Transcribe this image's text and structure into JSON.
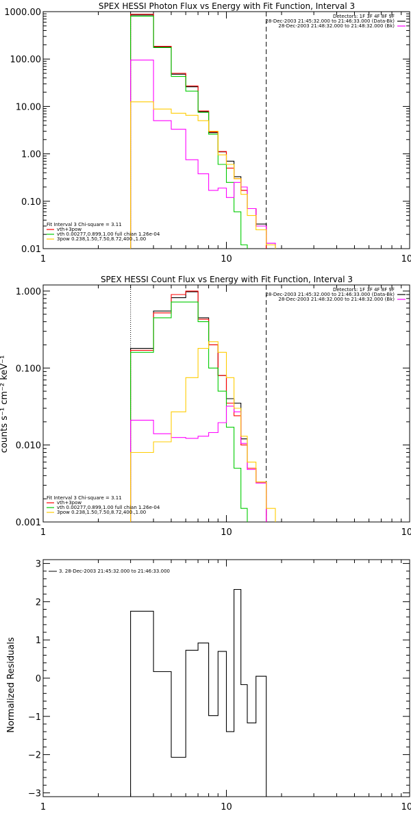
{
  "chart_data": [
    {
      "type": "line",
      "title": "SPEX HESSI Photon Flux vs Energy with Fit Function, Interval 3",
      "xscale": "log",
      "yscale": "log",
      "xlim": [
        1,
        100
      ],
      "ylim": [
        0.01,
        1000
      ],
      "xticks": [
        {
          "v": 1,
          "label": "1"
        },
        {
          "v": 10,
          "label": "10"
        },
        {
          "v": 100,
          "label": "100"
        }
      ],
      "yticks": [
        {
          "v": 0.01,
          "label": "0.01"
        },
        {
          "v": 0.1,
          "label": "0.10"
        },
        {
          "v": 1,
          "label": "1.00"
        },
        {
          "v": 10,
          "label": "10.00"
        },
        {
          "v": 100,
          "label": "100.00"
        },
        {
          "v": 1000,
          "label": "1000.00"
        }
      ],
      "vlines": [
        {
          "x": 3,
          "style": "dotted"
        },
        {
          "x": 16.5,
          "style": "dashed"
        }
      ],
      "legend_top": [
        "Detectors: 1F 3F 4F 8F 9F",
        "28-Dec-2003 21:45:32.000 to 21:46:33.000 (Data-Bk)",
        "28-Dec-2003 21:48:32.000 to 21:48:32.000 (Bk)"
      ],
      "legend_top_colors": [
        "#000000",
        "#000000",
        "#ff00ff"
      ],
      "legend_bottom": [
        "Fit Interval 3   Chi-square = 3.11",
        "vth+3pow",
        "vth 0.00277,0.899,1.00  full chian 1.26e-04",
        "3pow 0.238,1.50,7.50,8.72,400.,1.00"
      ],
      "legend_bottom_colors": [
        "",
        "#ff0000",
        "#00cc00",
        "#ffcc00"
      ],
      "edges": [
        3,
        4,
        5,
        6,
        7,
        8,
        9,
        10,
        11,
        12,
        13,
        14.5,
        16.5,
        18.5
      ],
      "series": [
        {
          "color": "#000000",
          "values": [
            850,
            180,
            48,
            26,
            7.8,
            2.8,
            1.1,
            0.7,
            0.33,
            0.17,
            0.07,
            0.033,
            0.013
          ]
        },
        {
          "color": "#ff0000",
          "values": [
            880,
            185,
            50,
            27,
            8.0,
            2.9,
            1.12,
            0.5,
            0.3,
            0.17,
            0.07,
            0.03,
            null
          ]
        },
        {
          "color": "#00cc00",
          "values": [
            800,
            175,
            43,
            21,
            7.5,
            2.6,
            0.6,
            0.25,
            0.06,
            0.012,
            null,
            null,
            null
          ]
        },
        {
          "color": "#ff00ff",
          "values": [
            95,
            5.0,
            3.3,
            0.75,
            0.38,
            0.17,
            0.19,
            0.12,
            0.25,
            0.2,
            0.07,
            0.03,
            0.013
          ]
        },
        {
          "color": "#ffcc00",
          "values": [
            12.5,
            8.8,
            7.2,
            6.5,
            5.0,
            3.0,
            0.95,
            0.6,
            0.3,
            0.14,
            0.05,
            0.025,
            0.012
          ]
        }
      ]
    },
    {
      "type": "line",
      "title": "SPEX HESSI Count Flux vs Energy with Fit Function, Interval 3",
      "ylabel": "counts s⁻¹ cm⁻² keV⁻¹",
      "xscale": "log",
      "yscale": "log",
      "xlim": [
        1,
        100
      ],
      "ylim": [
        0.001,
        1.2
      ],
      "xticks": [
        {
          "v": 1,
          "label": "1"
        },
        {
          "v": 10,
          "label": "10"
        },
        {
          "v": 100,
          "label": "100"
        }
      ],
      "yticks": [
        {
          "v": 0.001,
          "label": "0.001"
        },
        {
          "v": 0.01,
          "label": "0.010"
        },
        {
          "v": 0.1,
          "label": "0.100"
        },
        {
          "v": 1,
          "label": "1.000"
        }
      ],
      "vlines": [
        {
          "x": 3,
          "style": "dotted"
        },
        {
          "x": 16.5,
          "style": "dashed"
        }
      ],
      "legend_top": [
        "Detectors: 1F 3F 4F 8F 9F",
        "28-Dec-2003 21:45:32.000 to 21:46:33.000 (Data-Bk)",
        "28-Dec-2003 21:48:32.000 to 21:48:32.000 (Bk)"
      ],
      "legend_top_colors": [
        "#000000",
        "#000000",
        "#ff00ff"
      ],
      "legend_bottom": [
        "Fit Interval 3   Chi-square = 3.11",
        "vth+3pow",
        "vth 0.00277,0.899,1.00  full chian 1.26e-04",
        "3pow 0.238,1.50,7.50,8.72,400.,1.00"
      ],
      "legend_bottom_colors": [
        "",
        "#ff0000",
        "#00cc00",
        "#ffcc00"
      ],
      "edges": [
        3,
        4,
        5,
        6,
        7,
        8,
        9,
        10,
        11,
        12,
        13,
        14.5,
        16.5,
        18.5
      ],
      "series": [
        {
          "color": "#000000",
          "values": [
            0.18,
            0.55,
            0.82,
            0.98,
            0.45,
            0.2,
            0.08,
            0.04,
            0.035,
            0.012,
            0.005,
            0.0033,
            null
          ]
        },
        {
          "color": "#ff0000",
          "values": [
            0.17,
            0.52,
            0.9,
            1.0,
            0.43,
            0.2,
            0.08,
            0.035,
            0.024,
            0.01,
            0.005,
            0.0033,
            null
          ]
        },
        {
          "color": "#00cc00",
          "values": [
            0.16,
            0.45,
            0.72,
            0.72,
            0.4,
            0.1,
            0.05,
            0.017,
            0.005,
            0.0015,
            null,
            null,
            null
          ]
        },
        {
          "color": "#ff00ff",
          "values": [
            0.021,
            0.014,
            0.0125,
            0.0122,
            0.013,
            0.0145,
            0.0195,
            0.032,
            0.027,
            0.0105,
            0.0048,
            0.0032,
            null
          ]
        },
        {
          "color": "#ffcc00",
          "values": [
            0.008,
            0.011,
            0.027,
            0.075,
            0.18,
            0.22,
            0.16,
            0.075,
            0.03,
            0.013,
            0.006,
            0.0033,
            0.0015
          ]
        }
      ]
    },
    {
      "type": "line",
      "ylabel": "Normalized Residuals",
      "xscale": "log",
      "yscale": "linear",
      "xlim": [
        1,
        100
      ],
      "ylim": [
        -3.1,
        3.1
      ],
      "xticks": [
        {
          "v": 1,
          "label": "1"
        },
        {
          "v": 10,
          "label": "10"
        },
        {
          "v": 100,
          "label": "100"
        }
      ],
      "yticks": [
        {
          "v": -3,
          "label": "−3"
        },
        {
          "v": -2,
          "label": "−2"
        },
        {
          "v": -1,
          "label": "−1"
        },
        {
          "v": 0,
          "label": "0"
        },
        {
          "v": 1,
          "label": "1"
        },
        {
          "v": 2,
          "label": "2"
        },
        {
          "v": 3,
          "label": "3"
        }
      ],
      "legend": "3. 28-Dec-2003 21:45:32.000 to 21:46:33.000",
      "edges": [
        3,
        4,
        5,
        6,
        7,
        8,
        9,
        10,
        11,
        12,
        13,
        14.5,
        16.5
      ],
      "series": [
        {
          "color": "#000000",
          "values": [
            1.75,
            0.17,
            -2.07,
            0.73,
            0.92,
            -0.98,
            0.7,
            -1.4,
            2.32,
            -0.17,
            -1.17,
            0.05
          ]
        }
      ]
    }
  ]
}
